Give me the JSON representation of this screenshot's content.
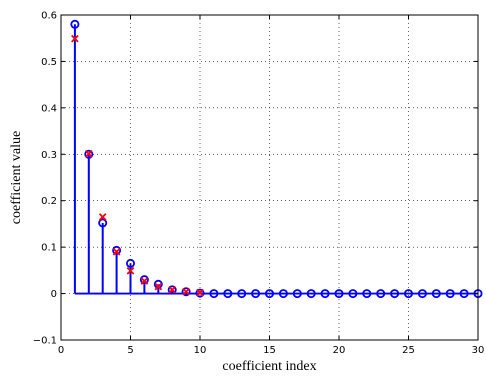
{
  "chart_data": {
    "type": "stem",
    "title": "",
    "xlabel": "coefficient index",
    "ylabel": "coefficient value",
    "xlim": [
      0,
      30
    ],
    "ylim": [
      -0.1,
      0.6
    ],
    "xticks": [
      0,
      5,
      10,
      15,
      20,
      25,
      30
    ],
    "yticks": [
      -0.1,
      0,
      0.1,
      0.2,
      0.3,
      0.4,
      0.5,
      0.6
    ],
    "xtick_labels": [
      "0",
      "5",
      "10",
      "15",
      "20",
      "25",
      "30"
    ],
    "ytick_labels": [
      "−0.1",
      "0",
      "0.1",
      "0.2",
      "0.3",
      "0.4",
      "0.5",
      "0.6"
    ],
    "grid": true,
    "series": [
      {
        "marker": "circle",
        "stem": true,
        "color": "#0000ff",
        "x": [
          1,
          2,
          3,
          4,
          5,
          6,
          7,
          8,
          9,
          10,
          11,
          12,
          13,
          14,
          15,
          16,
          17,
          18,
          19,
          20,
          21,
          22,
          23,
          24,
          25,
          26,
          27,
          28,
          29,
          30
        ],
        "values": [
          0.58,
          0.3,
          0.152,
          0.093,
          0.065,
          0.03,
          0.02,
          0.008,
          0.004,
          0.001,
          0,
          0,
          0,
          0,
          0,
          0,
          0,
          0,
          0,
          0,
          0,
          0,
          0,
          0,
          0,
          0,
          0,
          0,
          0,
          0
        ]
      },
      {
        "marker": "x",
        "stem": false,
        "color": "#ff0000",
        "x": [
          1,
          2,
          3,
          4,
          5,
          6,
          7,
          8,
          9,
          10
        ],
        "values": [
          0.549,
          0.301,
          0.165,
          0.09,
          0.049,
          0.027,
          0.015,
          0.008,
          0.004,
          0.002
        ]
      }
    ]
  }
}
